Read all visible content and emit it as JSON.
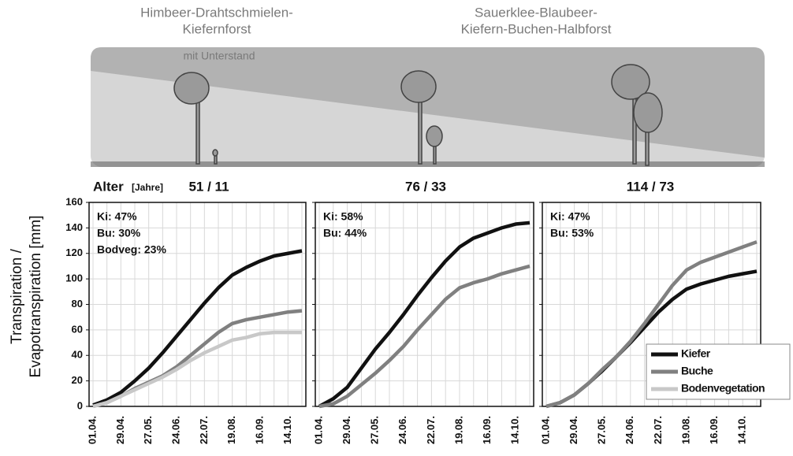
{
  "illustration": {
    "left_title": [
      "Himbeer-Drahtschmielen-",
      "Kiefernforst"
    ],
    "left_note": "mit Unterstand",
    "right_title": [
      "Sauerklee-Blaubeer-",
      "Kiefern-Buchen-Halbforst"
    ]
  },
  "age_label": "Alter",
  "age_unit": "[Jahre]",
  "chart_data": [
    {
      "type": "line",
      "title": "51 / 11",
      "ylabel": [
        "Transpiration /",
        "Evapotranspiration [mm]"
      ],
      "categories": [
        "01.04.",
        null,
        "29.04.",
        null,
        "27.05.",
        null,
        "24.06.",
        null,
        "22.07.",
        null,
        "19.08.",
        null,
        "16.09.",
        null,
        "14.10.",
        null
      ],
      "ylim": [
        0,
        160
      ],
      "yticks": [
        0,
        20,
        40,
        60,
        80,
        100,
        120,
        140,
        160
      ],
      "ytick_labels": true,
      "grid": true,
      "annotations": [
        "Ki: 47%",
        "Bu: 30%",
        "Bodveg: 23%"
      ],
      "legend": "lower right",
      "series": [
        {
          "name": "Kiefer",
          "color": "#111111",
          "values": [
            1,
            5,
            11,
            20,
            30,
            42,
            55,
            68,
            81,
            93,
            103,
            109,
            114,
            118,
            120,
            122
          ]
        },
        {
          "name": "Buche",
          "color": "#808080",
          "values": [
            0,
            3,
            8,
            14,
            19,
            24,
            31,
            40,
            49,
            58,
            65,
            68,
            70,
            72,
            74,
            75
          ]
        },
        {
          "name": "Bodenvegetation",
          "color": "#c8c8c8",
          "values": [
            0,
            3,
            8,
            13,
            18,
            23,
            29,
            36,
            42,
            47,
            52,
            54,
            57,
            58,
            58,
            58
          ]
        }
      ]
    },
    {
      "type": "line",
      "title": "76 / 33",
      "categories": [
        "01.04.",
        null,
        "29.04.",
        null,
        "27.05.",
        null,
        "24.06.",
        null,
        "22.07.",
        null,
        "19.08.",
        null,
        "16.09.",
        null,
        "14.10.",
        null
      ],
      "ylim": [
        0,
        160
      ],
      "yticks": [
        0,
        20,
        40,
        60,
        80,
        100,
        120,
        140,
        160
      ],
      "ytick_labels": false,
      "grid": true,
      "annotations": [
        "Ki: 58%",
        "Bu: 44%"
      ],
      "series": [
        {
          "name": "Kiefer",
          "color": "#111111",
          "values": [
            0,
            6,
            15,
            30,
            45,
            58,
            72,
            87,
            101,
            114,
            125,
            132,
            136,
            140,
            143,
            144
          ]
        },
        {
          "name": "Buche",
          "color": "#808080",
          "values": [
            0,
            2,
            8,
            17,
            26,
            36,
            47,
            60,
            72,
            84,
            93,
            97,
            100,
            104,
            107,
            110
          ]
        }
      ]
    },
    {
      "type": "line",
      "title": "114 / 73",
      "categories": [
        "01.04.",
        null,
        "29.04.",
        null,
        "27.05.",
        null,
        "24.06.",
        null,
        "22.07.",
        null,
        "19.08.",
        null,
        "16.09.",
        null,
        "14.10.",
        null
      ],
      "ylim": [
        0,
        160
      ],
      "yticks": [
        0,
        20,
        40,
        60,
        80,
        100,
        120,
        140,
        160
      ],
      "ytick_labels": false,
      "grid": true,
      "annotations": [
        "Ki: 47%",
        "Bu: 53%"
      ],
      "series": [
        {
          "name": "Kiefer",
          "color": "#111111",
          "values": [
            0,
            3,
            9,
            18,
            28,
            39,
            50,
            62,
            74,
            84,
            92,
            96,
            99,
            102,
            104,
            106
          ]
        },
        {
          "name": "Buche",
          "color": "#808080",
          "values": [
            0,
            3,
            9,
            18,
            29,
            39,
            51,
            65,
            80,
            95,
            107,
            113,
            117,
            121,
            125,
            129
          ]
        }
      ]
    }
  ]
}
